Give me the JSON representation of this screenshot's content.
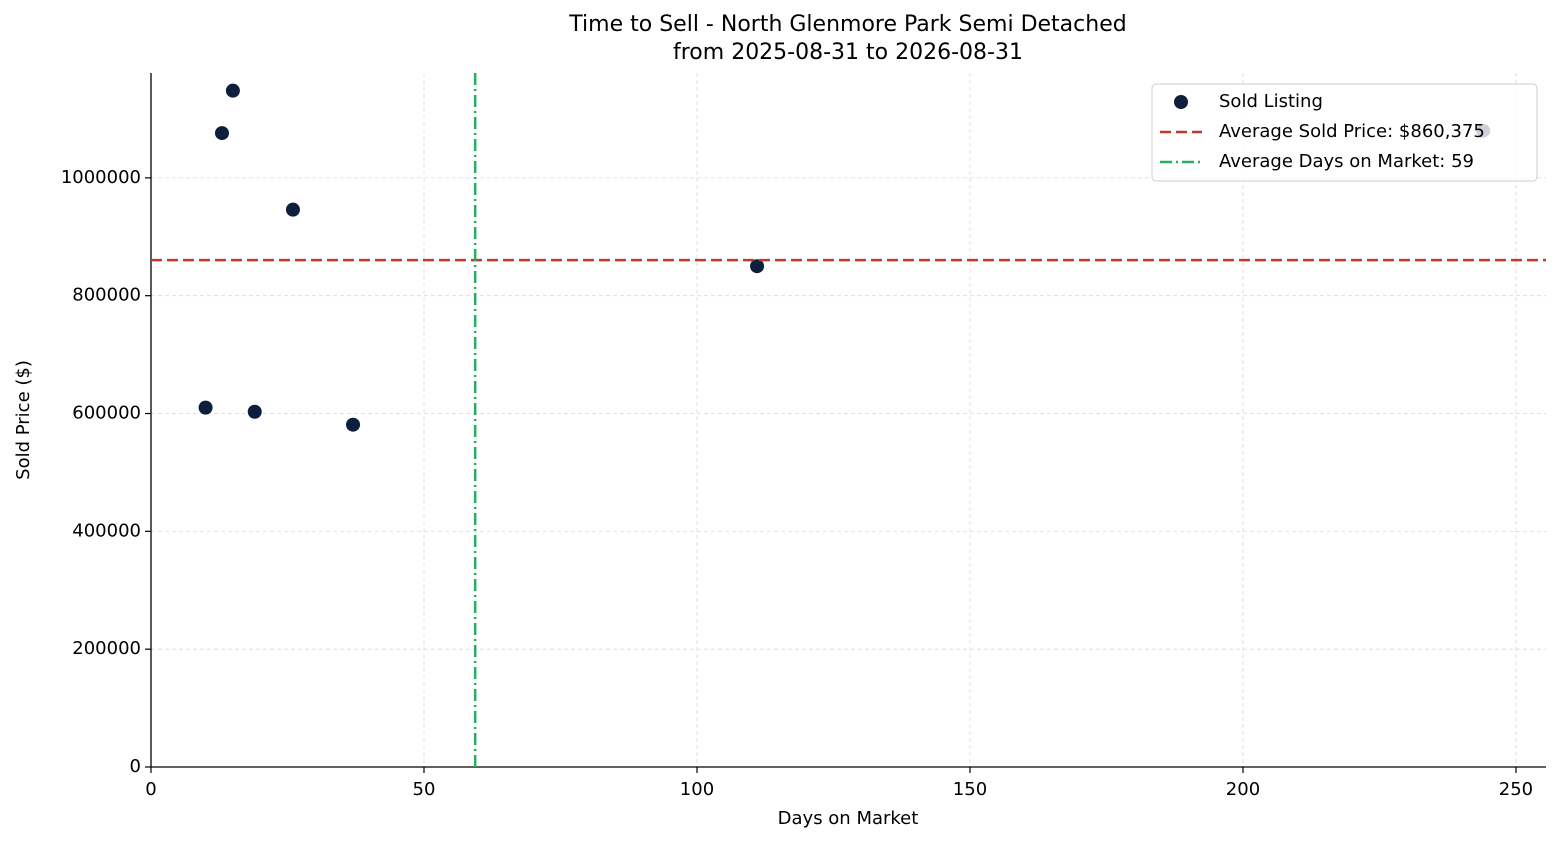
{
  "chart_data": {
    "type": "scatter",
    "title": "Time to Sell - North Glenmore Park Semi Detached",
    "subtitle": "from 2025-08-31 to 2026-08-31",
    "x_label": "Days on Market",
    "y_label": "Sold Price ($)",
    "series": [
      {
        "name": "Sold Listing",
        "color": "#0d1f3c",
        "x": [
          10,
          13,
          15,
          19,
          26,
          37,
          111,
          244
        ],
        "values": [
          610000,
          1076000,
          1148000,
          603000,
          946000,
          581000,
          850000,
          1080000
        ]
      }
    ],
    "reference_lines": [
      {
        "name": "Average Sold Price: $860,375",
        "orientation": "horizontal",
        "value": 860375,
        "color": "#c0392b",
        "style": "dashed"
      },
      {
        "name": "Average Days on Market: 59",
        "orientation": "vertical",
        "value": 59.375,
        "color": "#27ae60",
        "style": "dashdot"
      }
    ],
    "xlim": [
      0,
      255.5
    ],
    "xticks": [
      0,
      50,
      100,
      150,
      200,
      250
    ],
    "ylim": [
      0,
      1178000
    ],
    "yticks": [
      0,
      200000,
      400000,
      600000,
      800000,
      1000000
    ],
    "grid": true,
    "legend": "upper right"
  }
}
